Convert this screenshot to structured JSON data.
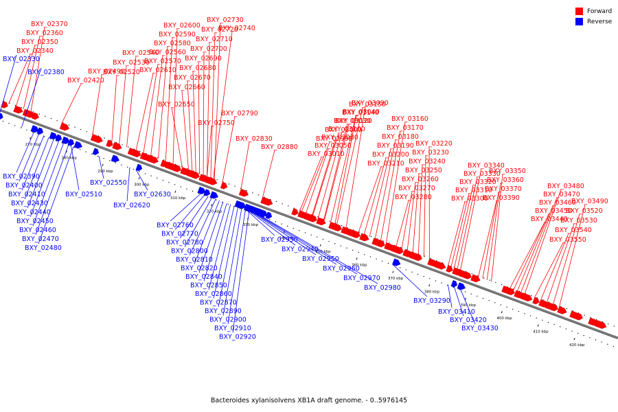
{
  "legend": {
    "forward": {
      "label": "Forward",
      "color": "#ff0000"
    },
    "reverse": {
      "label": "Reverse",
      "color": "#0000ff"
    }
  },
  "footer": {
    "caption": "Bacteroides xylanisolvens XB1A draft genome. - 0..5976145"
  },
  "colors": {
    "forward": "#ff0000",
    "reverse": "#0000ff",
    "axis": "#7a7a7a"
  },
  "scale_ticks": [
    "270 kbp",
    "280 kbp",
    "290 kbp",
    "300 kbp",
    "310 kbp",
    "320 kbp",
    "330 kbp",
    "340 kbp",
    "350 kbp",
    "360 kbp",
    "370 kbp",
    "380 kbp",
    "390 kbp",
    "400 kbp",
    "410 kbp",
    "420 kbp"
  ],
  "forward_genes": [
    "BXY_02370",
    "BXY_02360",
    "BXY_02350",
    "BXY_02340",
    "BXY_02420",
    "BXY_02490",
    "BXY_02540",
    "BXY_02530",
    "BXY_02520",
    "BXY_02600",
    "BXY_02590",
    "BXY_02580",
    "BXY_02560",
    "BXY_02570",
    "BXY_02610",
    "BXY_02650",
    "BXY_02660",
    "BXY_02670",
    "BXY_02680",
    "BXY_02690",
    "BXY_02700",
    "BXY_02710",
    "BXY_02720",
    "BXY_02730",
    "BXY_02740",
    "BXY_02750",
    "BXY_02790",
    "BXY_02830",
    "BXY_02880",
    "BXY_03090",
    "BXY_03040",
    "BXY_03030",
    "BXY_03000",
    "BXY_02990",
    "BXY_03010",
    "BXY_03050",
    "BXY_03080",
    "BXY_03100",
    "BXY_03120",
    "BXY_03140",
    "BXY_03150",
    "BXY_03160",
    "BXY_03170",
    "BXY_03180",
    "BXY_03190",
    "BXY_03200",
    "BXY_03210",
    "BXY_03220",
    "BXY_03230",
    "BXY_03240",
    "BXY_03250",
    "BXY_03260",
    "BXY_03270",
    "BXY_03280",
    "BXY_03300",
    "BXY_03310",
    "BXY_03320",
    "BXY_03330",
    "BXY_03340",
    "BXY_03350",
    "BXY_03360",
    "BXY_03370",
    "BXY_03390",
    "BXY_03440",
    "BXY_03450",
    "BXY_03460",
    "BXY_03470",
    "BXY_03480",
    "BXY_03490",
    "BXY_03520",
    "BXY_03530",
    "BXY_03540",
    "BXY_03550"
  ],
  "reverse_genes": [
    "BXY_02330",
    "BXY_02380",
    "BXY_02390",
    "BXY_02400",
    "BXY_02410",
    "BXY_02430",
    "BXY_02440",
    "BXY_02450",
    "BXY_02460",
    "BXY_02470",
    "BXY_02480",
    "BXY_02510",
    "BXY_02550",
    "BXY_02620",
    "BXY_02630",
    "BXY_02760",
    "BXY_02770",
    "BXY_02780",
    "BXY_02800",
    "BXY_02810",
    "BXY_02820",
    "BXY_02840",
    "BXY_02850",
    "BXY_02860",
    "BXY_02870",
    "BXY_02890",
    "BXY_02900",
    "BXY_02910",
    "BXY_02920",
    "BXY_02930",
    "BXY_02940",
    "BXY_02950",
    "BXY_02960",
    "BXY_02970",
    "BXY_02980",
    "BXY_03290",
    "BXY_03410",
    "BXY_03420",
    "BXY_03430"
  ]
}
